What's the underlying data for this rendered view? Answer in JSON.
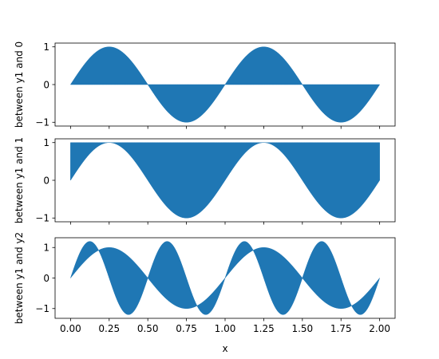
{
  "chart_data": {
    "type": "area",
    "xlabel": "x",
    "x_range": [
      0,
      2
    ],
    "x_step": 0.01,
    "xlim": [
      -0.1,
      2.1
    ],
    "x_ticks": [
      0,
      0.25,
      0.5,
      0.75,
      1,
      1.25,
      1.5,
      1.75,
      2
    ],
    "x_tick_labels": [
      "0.00",
      "0.25",
      "0.50",
      "0.75",
      "1.00",
      "1.25",
      "1.50",
      "1.75",
      "2.00"
    ],
    "y1": "sin(2*pi*x)",
    "y2": "1.2*sin(4*pi*x)",
    "fill_color": "#1f77b4",
    "subplots": [
      {
        "ylabel": "between y1 and 0",
        "fill_between": [
          "y1",
          0
        ],
        "ylim": [
          -1.1,
          1.1
        ],
        "y_ticks": [
          -1,
          0,
          1
        ],
        "y_tick_labels": [
          "−1",
          "0",
          "1"
        ]
      },
      {
        "ylabel": "between y1 and 1",
        "fill_between": [
          "y1",
          1
        ],
        "ylim": [
          -1.1,
          1.1
        ],
        "y_ticks": [
          -1,
          0,
          1
        ],
        "y_tick_labels": [
          "−1",
          "0",
          "1"
        ]
      },
      {
        "ylabel": "between y1 and y2",
        "fill_between": [
          "y1",
          "y2"
        ],
        "ylim": [
          -1.32,
          1.32
        ],
        "y_ticks": [
          -1,
          0,
          1
        ],
        "y_tick_labels": [
          "−1",
          "0",
          "1"
        ]
      }
    ]
  }
}
